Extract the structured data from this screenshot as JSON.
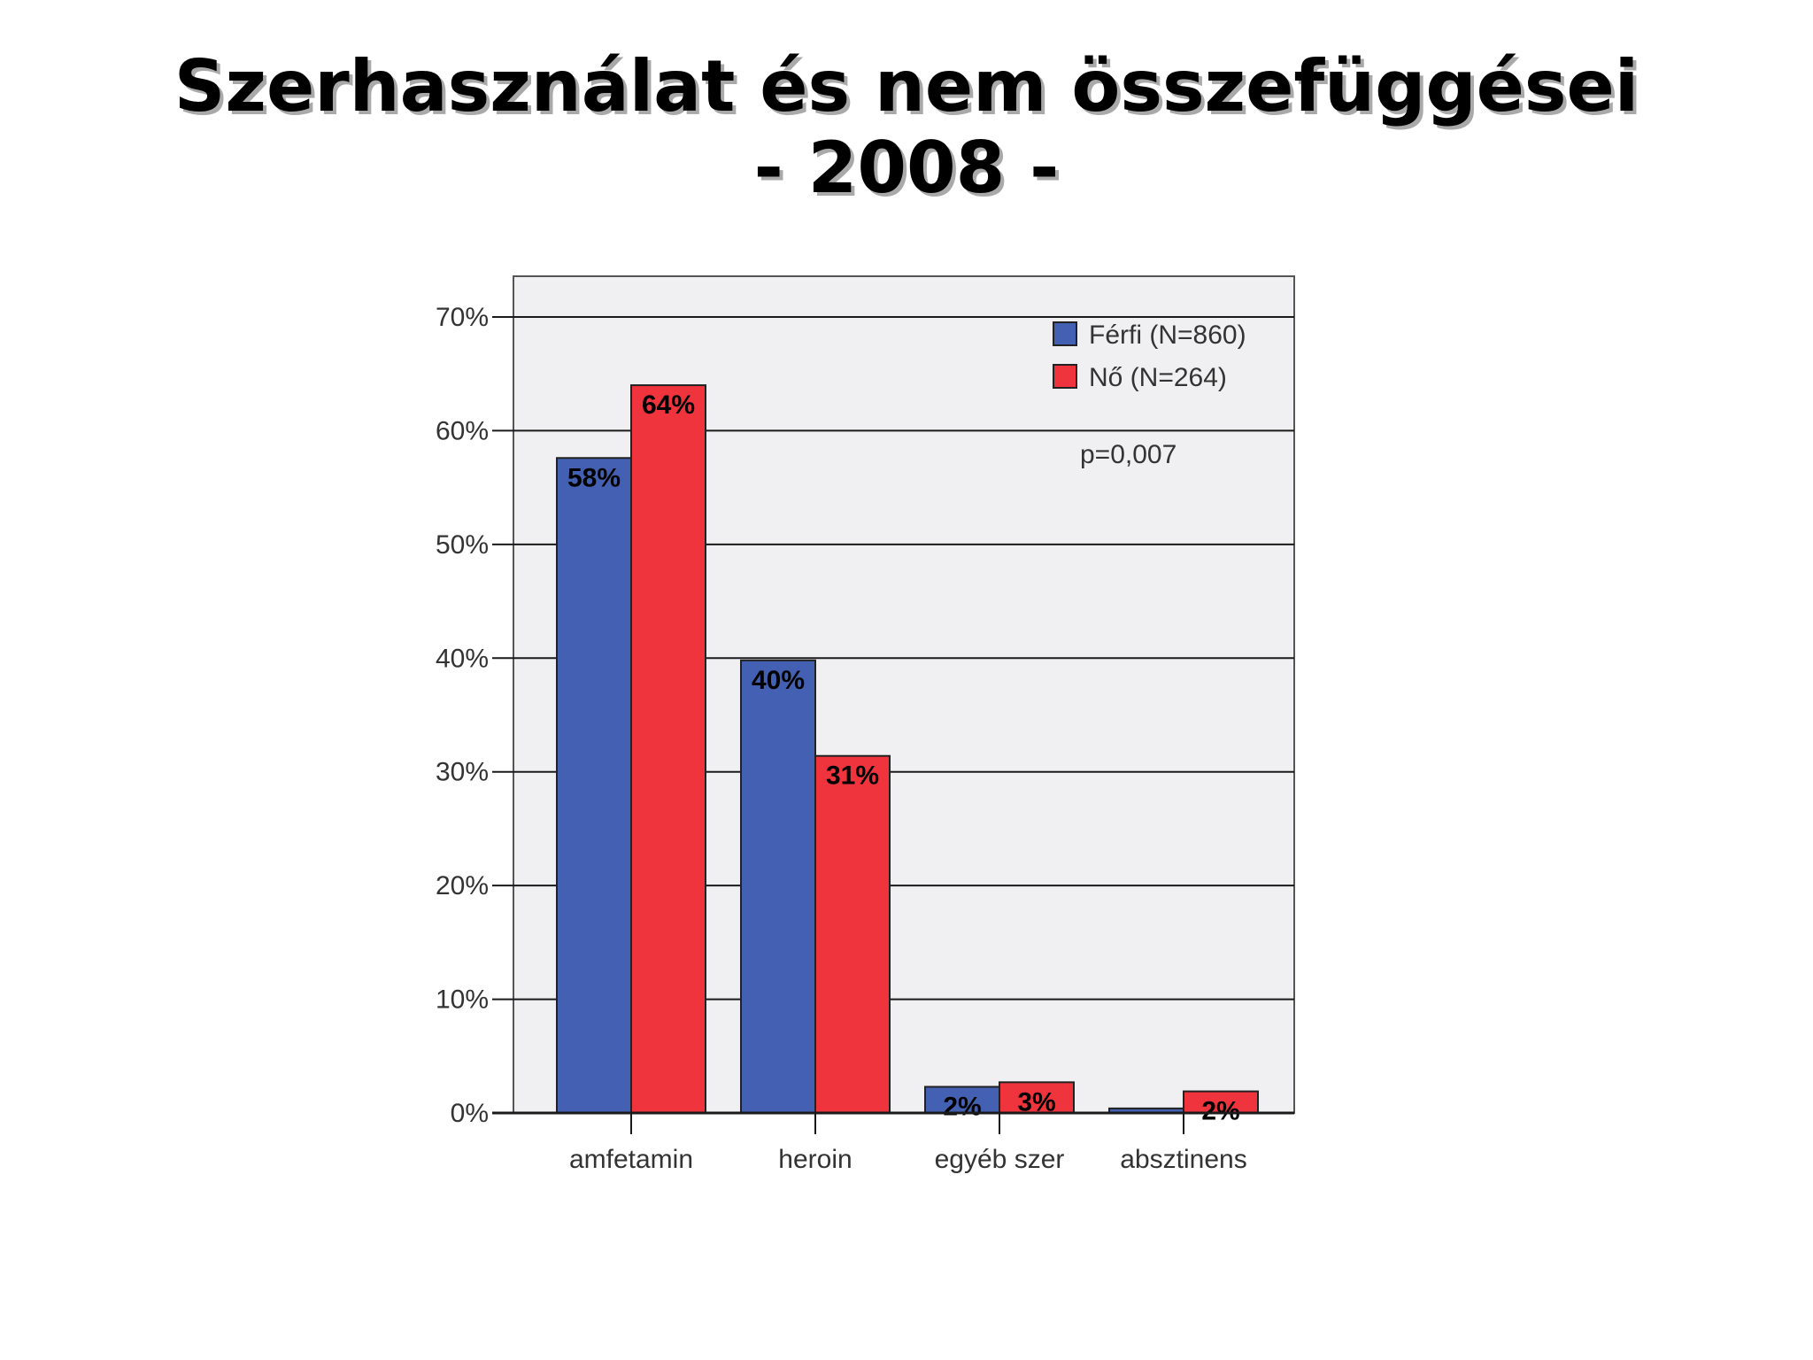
{
  "title": {
    "line1": "Szerhasználat és nem összefüggései",
    "line2": "- 2008 -"
  },
  "chart_data": {
    "type": "bar",
    "categories": [
      "amfetamin",
      "heroin",
      "egyéb szer",
      "absztinens"
    ],
    "series": [
      {
        "name": "Férfi (N=860)",
        "color": "#4360b3",
        "values": [
          57.6,
          39.8,
          2.3,
          0.4
        ],
        "labels": [
          "58%",
          "40%",
          "2%",
          ""
        ]
      },
      {
        "name": "Nő (N=264)",
        "color": "#ef343d",
        "values": [
          64.0,
          31.4,
          2.7,
          1.9
        ],
        "labels": [
          "64%",
          "31%",
          "3%",
          "2%"
        ]
      }
    ],
    "ylim": [
      0,
      70
    ],
    "yticks": [
      "0%",
      "10%",
      "20%",
      "30%",
      "40%",
      "50%",
      "60%",
      "70%"
    ],
    "ytick_values": [
      0,
      10,
      20,
      30,
      40,
      50,
      60,
      70
    ],
    "grid": true,
    "legend_position": "top-right",
    "annotation": "p=0,007",
    "plot_background": "#f0f0f2"
  }
}
